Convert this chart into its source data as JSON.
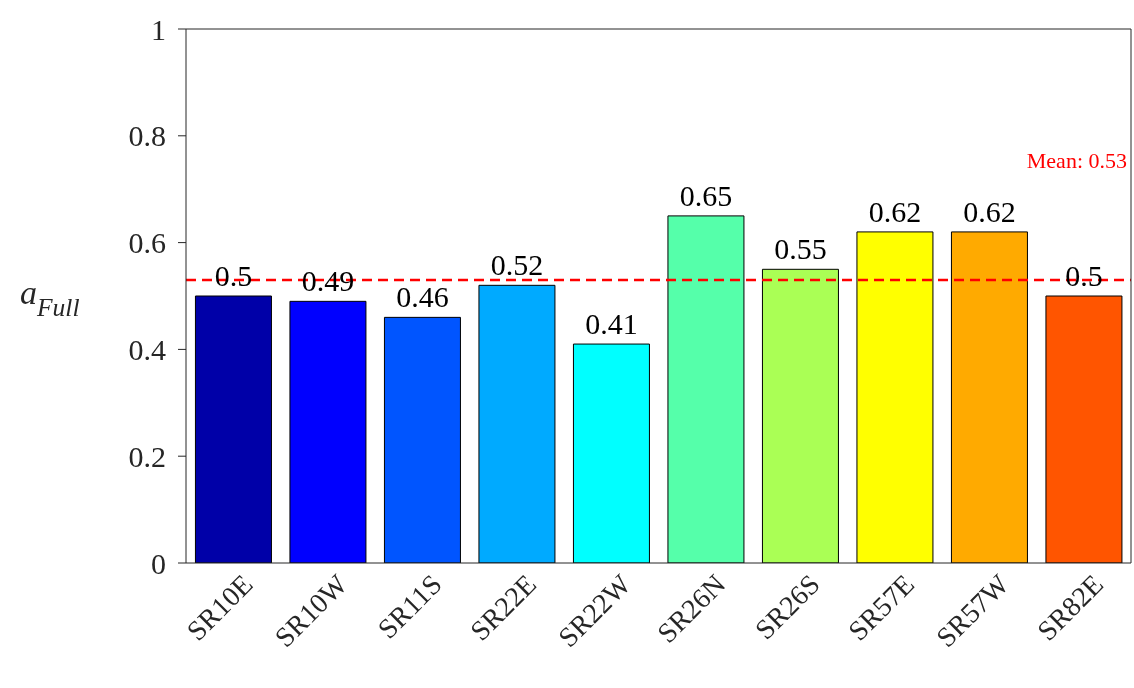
{
  "chart_data": {
    "type": "bar",
    "ylabel": "a$_{Full}$",
    "categories": [
      "SR10E",
      "SR10W",
      "SR11S",
      "SR22E",
      "SR22W",
      "SR26N",
      "SR26S",
      "SR57E",
      "SR57W",
      "SR82E"
    ],
    "values": [
      0.5,
      0.49,
      0.46,
      0.52,
      0.41,
      0.65,
      0.55,
      0.62,
      0.62,
      0.5
    ],
    "colors": [
      "#0000a8",
      "#0000ff",
      "#0055ff",
      "#00aaff",
      "#00ffff",
      "#55ffaa",
      "#aaff55",
      "#ffff00",
      "#ffaa00",
      "#ff5500"
    ],
    "ylim": [
      0,
      1
    ],
    "yticks": [
      0,
      0.2,
      0.4,
      0.6,
      0.8,
      1
    ],
    "grid": false,
    "legend": false,
    "data_labels": true,
    "ref_lines": [
      {
        "axis": "y",
        "value": 0.53,
        "label": "Mean: 0.53",
        "color": "#ff0000",
        "line_style": "dashed"
      }
    ]
  }
}
